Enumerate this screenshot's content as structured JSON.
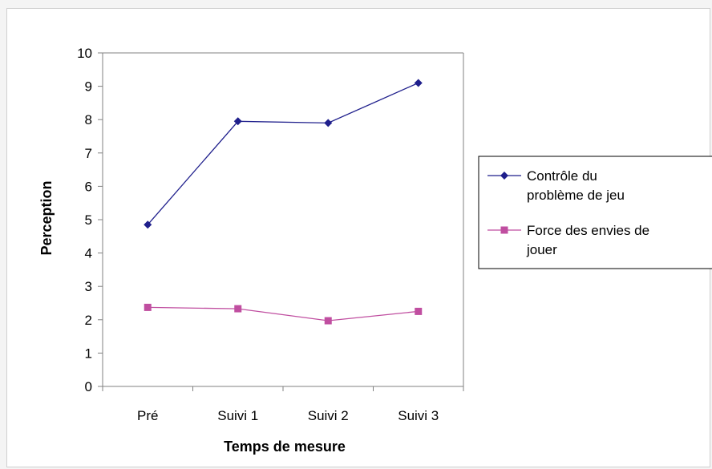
{
  "chart_data": {
    "type": "line",
    "xlabel": "Temps de mesure",
    "ylabel": "Perception",
    "categories": [
      "Pré",
      "Suivi 1",
      "Suivi 2",
      "Suivi 3"
    ],
    "ylim": [
      0,
      10
    ],
    "yticks": [
      "0",
      "1",
      "2",
      "3",
      "4",
      "5",
      "6",
      "7",
      "8",
      "9",
      "10"
    ],
    "grid": false,
    "legend_position": "right",
    "series": [
      {
        "name": "Contrôle du problème de jeu",
        "legend_lines": [
          "Contrôle du",
          "problème de jeu"
        ],
        "values": [
          4.85,
          7.95,
          7.9,
          9.1
        ],
        "color": "#1f1f8c",
        "marker": "diamond"
      },
      {
        "name": "Force des envies de jouer",
        "legend_lines": [
          "Force des envies de",
          "jouer"
        ],
        "values": [
          2.37,
          2.33,
          1.97,
          2.25
        ],
        "color": "#c04ea0",
        "marker": "square"
      }
    ]
  }
}
